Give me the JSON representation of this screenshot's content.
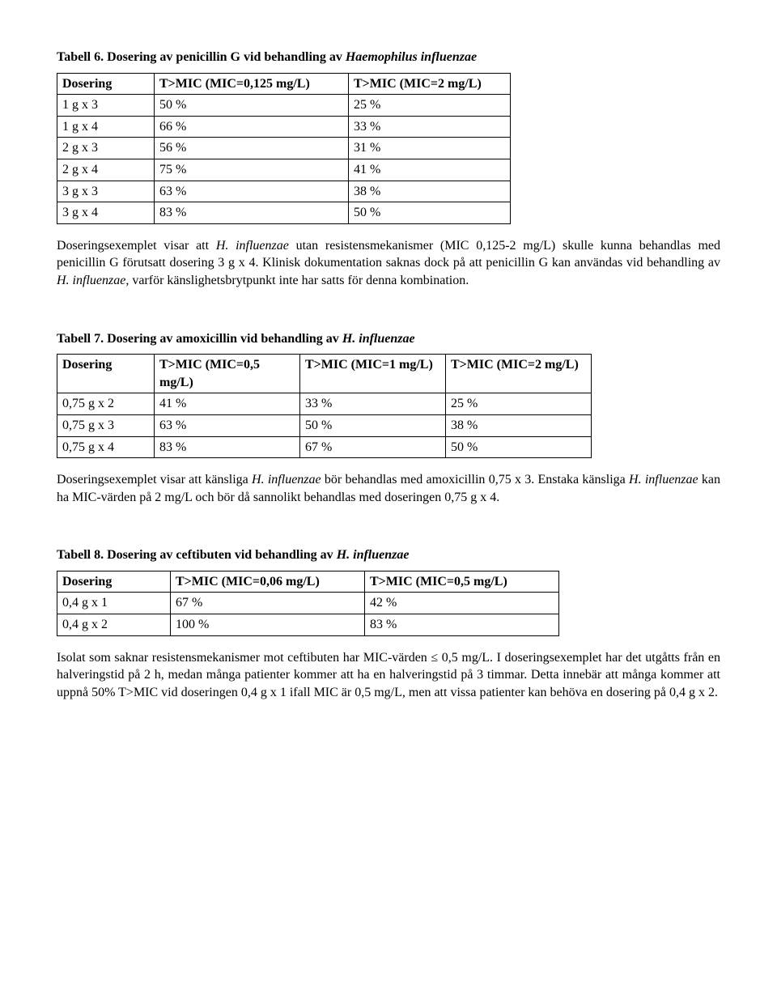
{
  "t6": {
    "title_prefix": "Tabell 6. Dosering av penicillin G vid behandling av ",
    "title_italic": "Haemophilus influenzae",
    "columns": [
      "Dosering",
      "T>MIC (MIC=0,125 mg/L)",
      "T>MIC (MIC=2 mg/L)"
    ],
    "col_widths": [
      "120px",
      "240px",
      "200px"
    ],
    "rows": [
      [
        "1 g x 3",
        "50 %",
        "25 %"
      ],
      [
        "1 g x 4",
        "66 %",
        "33 %"
      ],
      [
        "2 g x 3",
        "56 %",
        "31 %"
      ],
      [
        "2 g x 4",
        "75 %",
        "41 %"
      ],
      [
        "3 g x 3",
        "63 %",
        "38 %"
      ],
      [
        "3 g x 4",
        "83 %",
        "50 %"
      ]
    ],
    "p1a": "Doseringsexemplet visar att ",
    "p1b": "H. influenzae",
    "p1c": " utan resistensmekanismer (MIC 0,125-2 mg/L) skulle kunna behandlas med penicillin G förutsatt dosering 3 g x 4. Klinisk dokumentation saknas dock på att penicillin G kan användas vid behandling av ",
    "p1d": "H. influenzae",
    "p1e": ", varför känslighetsbrytpunkt inte har satts för denna kombination."
  },
  "t7": {
    "title_prefix": "Tabell 7. Dosering av amoxicillin vid behandling av ",
    "title_italic": "H. influenzae",
    "columns": [
      "Dosering",
      "T>MIC (MIC=0,5 mg/L)",
      "T>MIC (MIC=1 mg/L)",
      "T>MIC (MIC=2 mg/L)"
    ],
    "col_widths": [
      "120px",
      "180px",
      "180px",
      "180px"
    ],
    "rows": [
      [
        "0,75 g x 2",
        "41 %",
        "33 %",
        "25 %"
      ],
      [
        "0,75 g x 3",
        "63 %",
        "50 %",
        "38 %"
      ],
      [
        "0,75 g x 4",
        "83 %",
        "67 %",
        "50 %"
      ]
    ],
    "p1a": "Doseringsexemplet visar att känsliga ",
    "p1b": "H. influenzae",
    "p1c": " bör behandlas med amoxicillin 0,75 x 3. Enstaka känsliga ",
    "p1d": "H. influenzae",
    "p1e": " kan ha MIC-värden på 2 mg/L och bör då sannolikt behandlas med doseringen 0,75 g x 4."
  },
  "t8": {
    "title_prefix": "Tabell 8. Dosering av ceftibuten vid behandling av ",
    "title_italic": "H. influenzae",
    "columns": [
      "Dosering",
      "T>MIC (MIC=0,06 mg/L)",
      "T>MIC (MIC=0,5 mg/L)"
    ],
    "col_widths": [
      "140px",
      "240px",
      "240px"
    ],
    "rows": [
      [
        "0,4 g x 1",
        "67 %",
        "42 %"
      ],
      [
        "0,4 g x 2",
        "100 %",
        "83 %"
      ]
    ],
    "p1": "Isolat som saknar resistensmekanismer mot ceftibuten har MIC-värden ≤ 0,5 mg/L. I doseringsexemplet har det utgåtts från en halveringstid på 2 h, medan många patienter kommer att ha en halveringstid på 3 timmar. Detta innebär att många kommer att uppnå 50% T>MIC vid doseringen 0,4 g x 1 ifall MIC är 0,5 mg/L, men att vissa patienter kan behöva en dosering på 0,4 g x 2."
  }
}
